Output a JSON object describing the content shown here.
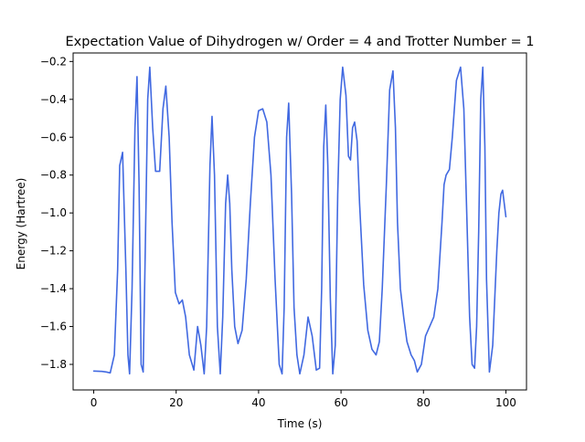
{
  "chart_data": {
    "type": "line",
    "title": "Expectation Value of Dihydrogen w/ Order = 4 and Trotter Number = 1",
    "xlabel": "Time (s)",
    "ylabel": "Energy (Hartree)",
    "xlim": [
      -5,
      105
    ],
    "ylim": [
      -1.935,
      -0.155
    ],
    "xticks": [
      0,
      20,
      40,
      60,
      80,
      100
    ],
    "yticks": [
      -1.8,
      -1.6,
      -1.4,
      -1.2,
      -1.0,
      -0.8,
      -0.6,
      -0.4,
      -0.2
    ],
    "grid": false,
    "legend": "none",
    "series": [
      {
        "color": "#4169e1",
        "x": [
          0,
          2,
          3,
          4,
          5,
          5.8,
          6.3,
          7.0,
          7.8,
          8.3,
          8.7,
          9.3,
          10.0,
          10.5,
          11.0,
          11.5,
          12.0,
          12.5,
          13.1,
          13.6,
          14.3,
          15.0,
          16.0,
          16.8,
          17.5,
          18.3,
          19.0,
          19.8,
          20.7,
          21.5,
          22.3,
          23.2,
          24.3,
          25.2,
          26.0,
          26.8,
          27.4,
          28.2,
          28.7,
          29.3,
          30.0,
          30.7,
          31.3,
          32.0,
          32.5,
          33.0,
          33.5,
          34.2,
          35.0,
          36.0,
          37.0,
          38.0,
          39.0,
          40.0,
          41.0,
          42.0,
          43.0,
          44.0,
          45.0,
          45.7,
          46.2,
          46.8,
          47.3,
          48.0,
          48.6,
          49.3,
          50.0,
          51.0,
          52.0,
          53.0,
          54.0,
          54.8,
          55.3,
          55.8,
          56.3,
          56.8,
          57.4,
          58.0,
          58.6,
          59.2,
          59.8,
          60.4,
          61.2,
          61.8,
          62.3,
          62.8,
          63.3,
          63.9,
          64.5,
          65.5,
          66.5,
          67.5,
          68.5,
          69.3,
          70.0,
          71.0,
          71.8,
          72.6,
          73.2,
          73.7,
          74.4,
          75.2,
          76.0,
          77.0,
          77.8,
          78.5,
          79.5,
          80.5,
          81.5,
          82.5,
          83.5,
          84.5,
          85.0,
          85.5,
          86.3,
          87.0,
          88.0,
          89.0,
          89.8,
          90.5,
          91.2,
          91.8,
          92.4,
          92.9,
          93.4,
          93.9,
          94.4,
          94.9,
          95.3,
          96.0,
          96.8,
          97.3,
          97.8,
          98.3,
          98.8,
          99.2,
          99.6,
          100.0
        ],
        "y": [
          -1.835,
          -1.837,
          -1.84,
          -1.845,
          -1.75,
          -1.3,
          -0.75,
          -0.68,
          -1.3,
          -1.75,
          -1.85,
          -1.4,
          -0.55,
          -0.28,
          -0.85,
          -1.8,
          -1.84,
          -1.2,
          -0.4,
          -0.23,
          -0.55,
          -0.78,
          -0.78,
          -0.45,
          -0.33,
          -0.6,
          -1.05,
          -1.42,
          -1.48,
          -1.46,
          -1.55,
          -1.75,
          -1.83,
          -1.6,
          -1.7,
          -1.85,
          -1.6,
          -0.75,
          -0.49,
          -0.8,
          -1.6,
          -1.85,
          -1.55,
          -0.95,
          -0.8,
          -0.95,
          -1.3,
          -1.6,
          -1.69,
          -1.62,
          -1.35,
          -0.95,
          -0.6,
          -0.46,
          -0.45,
          -0.52,
          -0.8,
          -1.35,
          -1.8,
          -1.85,
          -1.5,
          -0.6,
          -0.42,
          -0.9,
          -1.5,
          -1.75,
          -1.85,
          -1.75,
          -1.55,
          -1.65,
          -1.83,
          -1.82,
          -1.4,
          -0.65,
          -0.43,
          -0.75,
          -1.45,
          -1.85,
          -1.7,
          -0.9,
          -0.4,
          -0.23,
          -0.38,
          -0.7,
          -0.72,
          -0.55,
          -0.52,
          -0.62,
          -0.95,
          -1.38,
          -1.62,
          -1.72,
          -1.75,
          -1.68,
          -1.4,
          -0.85,
          -0.35,
          -0.25,
          -0.55,
          -1.05,
          -1.4,
          -1.55,
          -1.68,
          -1.75,
          -1.78,
          -1.84,
          -1.8,
          -1.65,
          -1.6,
          -1.55,
          -1.4,
          -1.05,
          -0.85,
          -0.8,
          -0.77,
          -0.6,
          -0.3,
          -0.23,
          -0.45,
          -1.0,
          -1.55,
          -1.8,
          -1.82,
          -1.6,
          -1.1,
          -0.4,
          -0.23,
          -0.65,
          -1.35,
          -1.84,
          -1.7,
          -1.45,
          -1.2,
          -1.0,
          -0.9,
          -0.88,
          -0.95,
          -1.02
        ]
      }
    ]
  }
}
